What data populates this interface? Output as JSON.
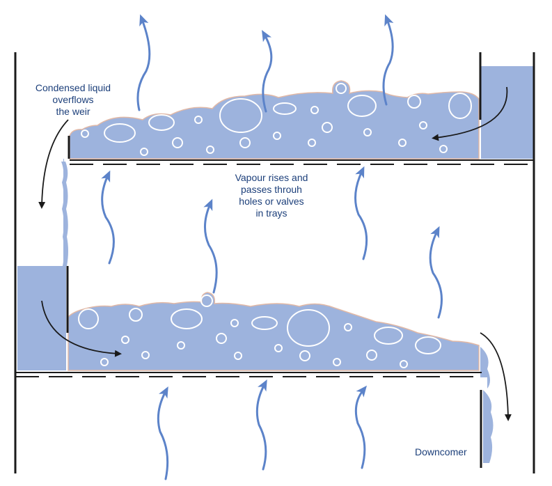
{
  "labels": {
    "condensed_liquid": "Condensed liquid\noverflows\nthe weir",
    "vapour": "Vapour rises and\npasses throuh\nholes or valves\nin trays",
    "downcomer": "Downcomer"
  },
  "colors": {
    "liquid": "#9db3dd",
    "liquid_edge": "#e2b9a6",
    "vapour_arrow": "#5c83c9",
    "structure": "#1a1a1a",
    "text": "#1c3f7a",
    "background": "#ffffff"
  }
}
